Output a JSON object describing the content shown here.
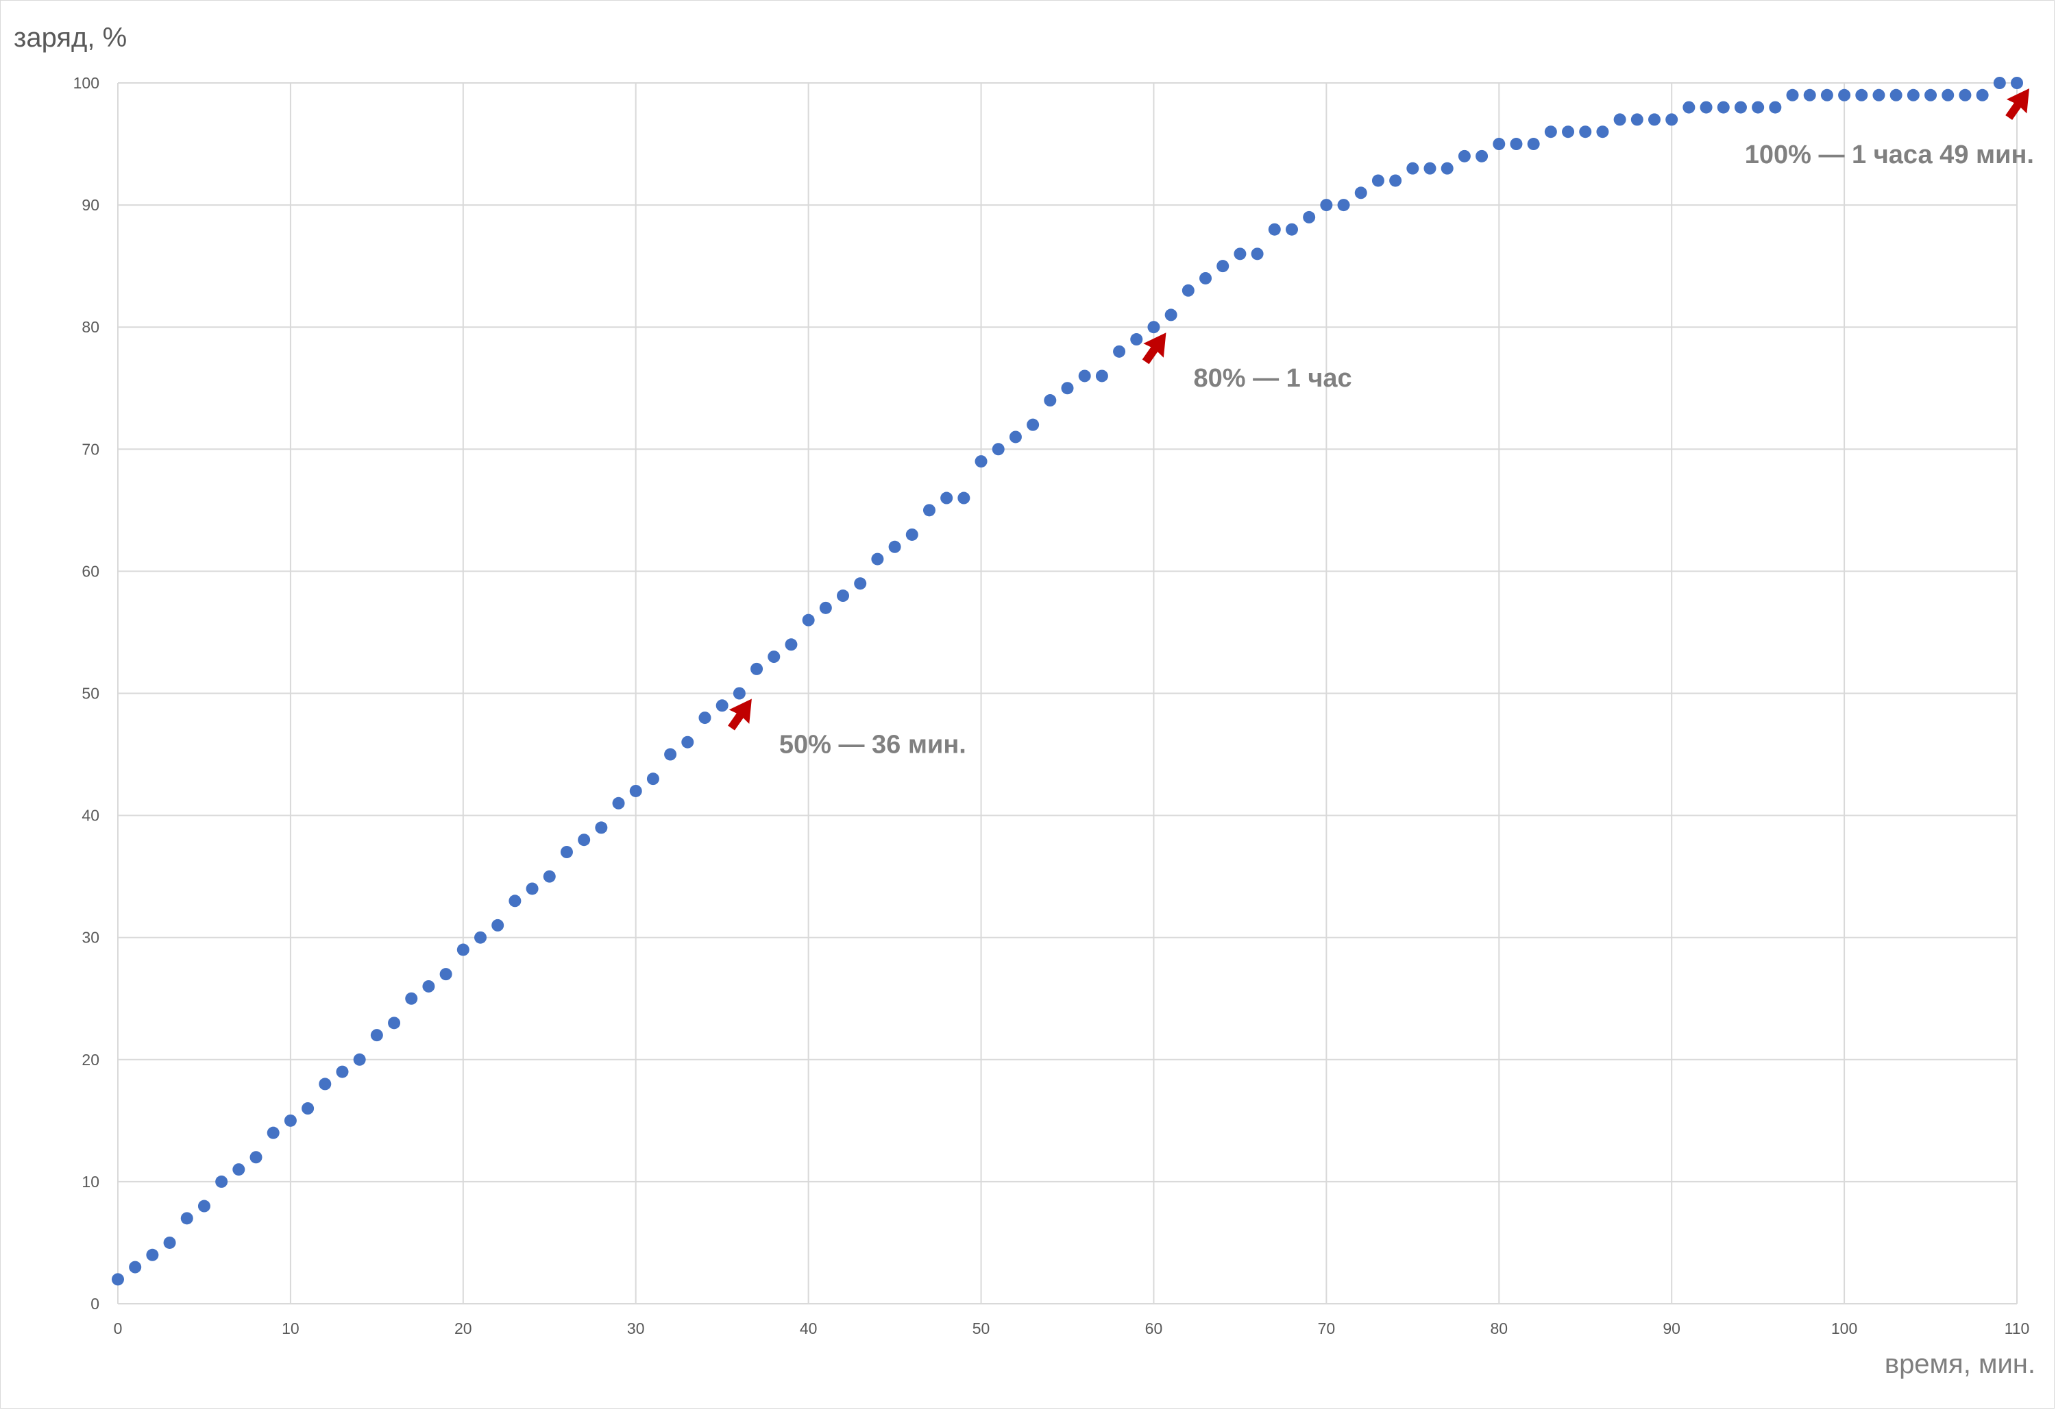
{
  "chart_data": {
    "type": "scatter",
    "title": "",
    "xlabel": "время, мин.",
    "ylabel": "заряд, %",
    "xlim": [
      0,
      110
    ],
    "ylim": [
      0,
      100
    ],
    "x_ticks": [
      0,
      10,
      20,
      30,
      40,
      50,
      60,
      70,
      80,
      90,
      100,
      110
    ],
    "y_ticks": [
      0,
      10,
      20,
      30,
      40,
      50,
      60,
      70,
      80,
      90,
      100
    ],
    "grid": true,
    "legend": "none",
    "series": [
      {
        "color": "#4472c4",
        "x": [
          0,
          1,
          2,
          3,
          4,
          5,
          6,
          7,
          8,
          9,
          10,
          11,
          12,
          13,
          14,
          15,
          16,
          17,
          18,
          19,
          20,
          21,
          22,
          23,
          24,
          25,
          26,
          27,
          28,
          29,
          30,
          31,
          32,
          33,
          34,
          35,
          36,
          37,
          38,
          39,
          40,
          41,
          42,
          43,
          44,
          45,
          46,
          47,
          48,
          49,
          50,
          51,
          52,
          53,
          54,
          55,
          56,
          57,
          58,
          59,
          60,
          61,
          62,
          63,
          64,
          65,
          66,
          67,
          68,
          69,
          70,
          71,
          72,
          73,
          74,
          75,
          76,
          77,
          78,
          79,
          80,
          81,
          82,
          83,
          84,
          85,
          86,
          87,
          88,
          89,
          90,
          91,
          92,
          93,
          94,
          95,
          96,
          97,
          98,
          99,
          100,
          101,
          102,
          103,
          104,
          105,
          106,
          107,
          108,
          109,
          110
        ],
        "y": [
          2,
          3,
          4,
          5,
          7,
          8,
          10,
          11,
          12,
          14,
          15,
          16,
          18,
          19,
          20,
          22,
          23,
          25,
          26,
          27,
          29,
          30,
          31,
          33,
          34,
          35,
          37,
          38,
          39,
          41,
          42,
          43,
          45,
          46,
          48,
          49,
          50,
          52,
          53,
          54,
          56,
          57,
          58,
          59,
          61,
          62,
          63,
          65,
          66,
          66,
          69,
          70,
          71,
          72,
          74,
          75,
          76,
          76,
          78,
          79,
          80,
          81,
          83,
          84,
          85,
          86,
          86,
          88,
          88,
          89,
          90,
          90,
          91,
          92,
          92,
          93,
          93,
          93,
          94,
          94,
          95,
          95,
          95,
          96,
          96,
          96,
          96,
          97,
          97,
          97,
          97,
          98,
          98,
          98,
          98,
          98,
          98,
          99,
          99,
          99,
          99,
          99,
          99,
          99,
          99,
          99,
          99,
          99,
          99,
          100,
          100
        ]
      }
    ],
    "annotations": [
      {
        "text": "50% — 36 мин.",
        "x": 36,
        "y": 50
      },
      {
        "text": "80% — 1 час",
        "x": 60,
        "y": 80
      },
      {
        "text": "100% — 1 часа 49 мин.",
        "x": 110,
        "y": 100
      }
    ],
    "annotation_color": "#c00000"
  }
}
